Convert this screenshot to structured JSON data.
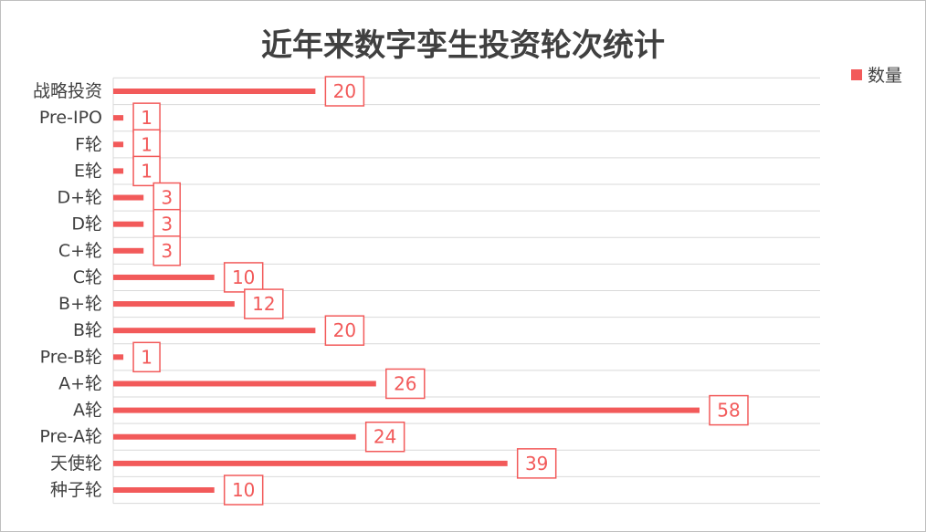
{
  "chart_data": {
    "type": "bar",
    "orientation": "horizontal",
    "title": "近年来数字孪生投资轮次统计",
    "categories": [
      "战略投资",
      "Pre-IPO",
      "F轮",
      "E轮",
      "D+轮",
      "D轮",
      "C+轮",
      "C轮",
      "B+轮",
      "B轮",
      "Pre-B轮",
      "A+轮",
      "A轮",
      "Pre-A轮",
      "天使轮",
      "种子轮"
    ],
    "series": [
      {
        "name": "数量",
        "color": "#f25a5a",
        "values": [
          20,
          1,
          1,
          1,
          3,
          3,
          3,
          10,
          12,
          20,
          1,
          26,
          58,
          24,
          39,
          10
        ]
      }
    ],
    "xlim": [
      0,
      58
    ],
    "legend_position": "top-right",
    "grid": "horizontal",
    "data_labels": "boxed"
  }
}
